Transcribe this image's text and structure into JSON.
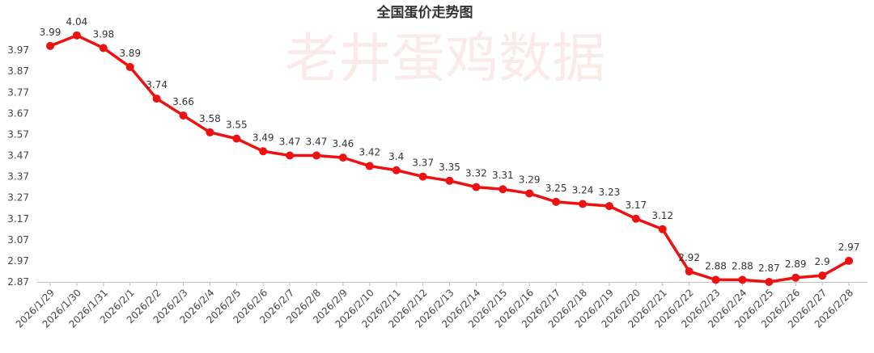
{
  "chart_data": {
    "type": "line",
    "title": "全国蛋价走势图",
    "watermark": "老井蛋鸡数据",
    "xlabel": "",
    "ylabel": "",
    "ylim": [
      2.87,
      4.07
    ],
    "yticks": [
      "2.87",
      "2.97",
      "3.07",
      "3.17",
      "3.27",
      "3.37",
      "3.47",
      "3.57",
      "3.67",
      "3.77",
      "3.87",
      "3.97"
    ],
    "grid": false,
    "legend": "none",
    "categories": [
      "2026/1/29",
      "2026/1/30",
      "2026/1/31",
      "2026/2/1",
      "2026/2/2",
      "2026/2/3",
      "2026/2/4",
      "2026/2/5",
      "2026/2/6",
      "2026/2/7",
      "2026/2/8",
      "2026/2/9",
      "2026/2/10",
      "2026/2/11",
      "2026/2/12",
      "2026/2/13",
      "2026/2/14",
      "2026/2/15",
      "2026/2/16",
      "2026/2/17",
      "2026/2/18",
      "2026/2/19",
      "2026/2/20",
      "2026/2/21",
      "2026/2/22",
      "2026/2/23",
      "2026/2/24",
      "2026/2/25",
      "2026/2/26",
      "2026/2/27",
      "2026/2/28"
    ],
    "series": [
      {
        "values": [
          3.99,
          4.04,
          3.98,
          3.89,
          3.74,
          3.66,
          3.58,
          3.55,
          3.49,
          3.47,
          3.47,
          3.46,
          3.42,
          3.4,
          3.37,
          3.35,
          3.32,
          3.31,
          3.29,
          3.25,
          3.24,
          3.23,
          3.17,
          3.12,
          2.92,
          2.88,
          2.88,
          2.87,
          2.89,
          2.9,
          2.97
        ],
        "labels": [
          "3.99",
          "4.04",
          "3.98",
          "3.89",
          "3.74",
          "3.66",
          "3.58",
          "3.55",
          "3.49",
          "3.47",
          "3.47",
          "3.46",
          "3.42",
          "3.4",
          "3.37",
          "3.35",
          "3.32",
          "3.31",
          "3.29",
          "3.25",
          "3.24",
          "3.23",
          "3.17",
          "3.12",
          "2.92",
          "2.88",
          "2.88",
          "2.87",
          "2.89",
          "2.9",
          "2.97"
        ]
      }
    ],
    "colors": {
      "line": "#ee1111",
      "marker": "#ee1111",
      "axis": "#bfbfbf"
    }
  }
}
